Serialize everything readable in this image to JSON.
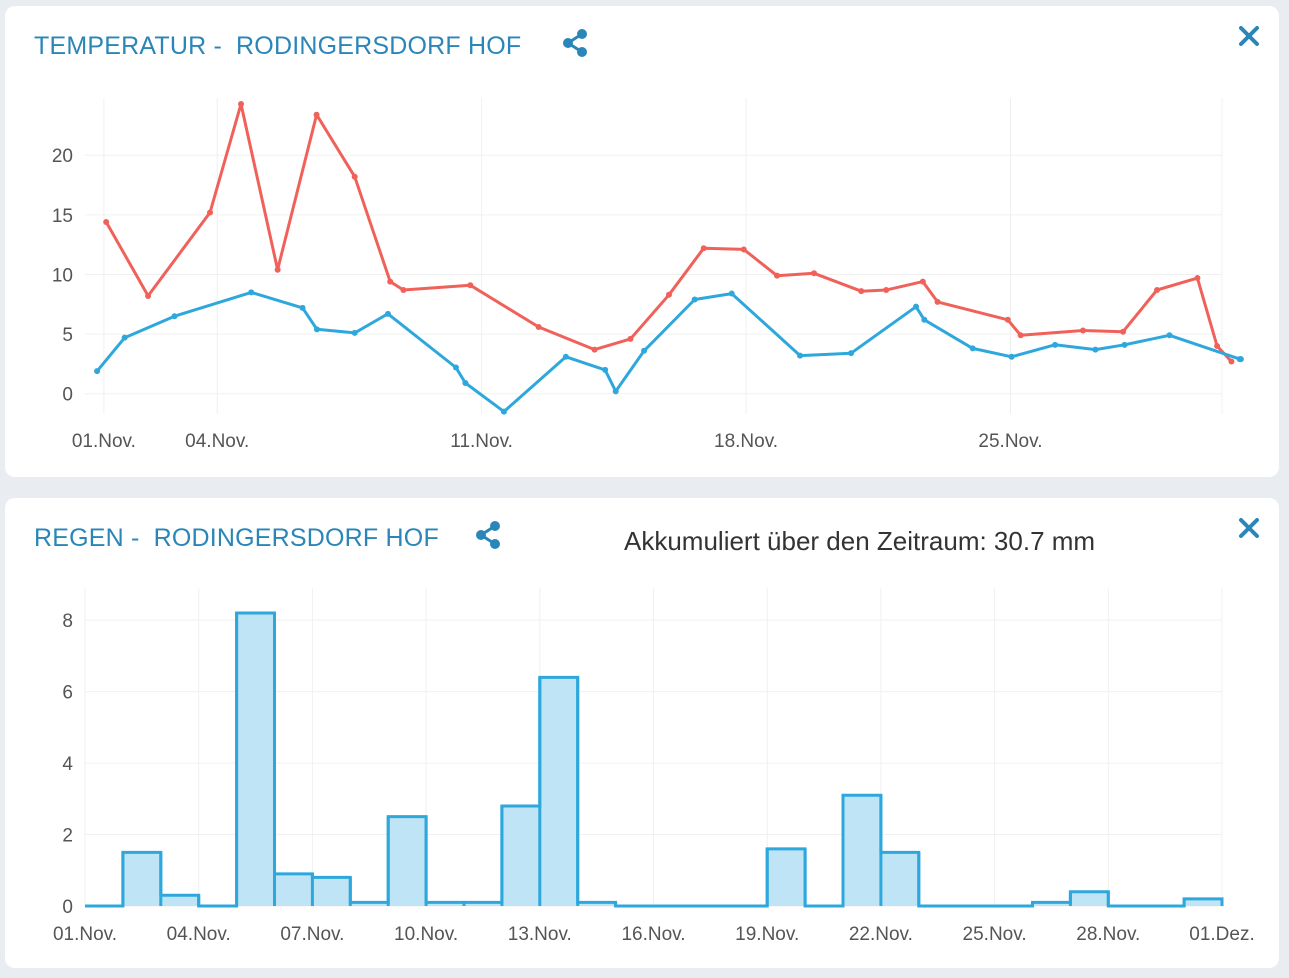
{
  "temperature_panel": {
    "title_prefix": "TEMPERATUR -",
    "station": "RODINGERSDORF HOF",
    "share_icon": "share-icon",
    "close_icon": "close-icon"
  },
  "rain_panel": {
    "title_prefix": "REGEN -",
    "station": "RODINGERSDORF HOF",
    "accumulated_text": "Akkumuliert über den Zeitraum: 30.7 mm",
    "share_icon": "share-icon",
    "close_icon": "close-icon"
  },
  "colors": {
    "accent": "#2a86b9",
    "max_line": "#f0615a",
    "min_line": "#2ea8dc",
    "bar_fill": "#bfe4f5",
    "bar_stroke": "#2ea8dc"
  },
  "chart_data": [
    {
      "type": "line",
      "x_axis": "date (day of month, November)",
      "xlim": [
        0.5,
        30.6
      ],
      "ylim": [
        -1.7,
        24.8
      ],
      "y_ticks": [
        0,
        5,
        10,
        15,
        20
      ],
      "x_ticks": [
        {
          "day": 1,
          "label": "01.Nov."
        },
        {
          "day": 4,
          "label": "04.Nov."
        },
        {
          "day": 11,
          "label": "11.Nov."
        },
        {
          "day": 18,
          "label": "18.Nov."
        },
        {
          "day": 25,
          "label": "25.Nov."
        }
      ],
      "grid": true,
      "legend": "none",
      "series": [
        {
          "key": "max",
          "color": "#f0615a",
          "points": [
            [
              1.06,
              14.4
            ],
            [
              2.17,
              8.2
            ],
            [
              3.81,
              15.2
            ],
            [
              4.63,
              24.3
            ],
            [
              5.6,
              10.4
            ],
            [
              6.63,
              23.4
            ],
            [
              7.64,
              18.2
            ],
            [
              8.58,
              9.4
            ],
            [
              8.93,
              8.7
            ],
            [
              10.7,
              9.1
            ],
            [
              12.51,
              5.6
            ],
            [
              13.99,
              3.7
            ],
            [
              14.94,
              4.6
            ],
            [
              15.96,
              8.3
            ],
            [
              16.88,
              12.2
            ],
            [
              17.94,
              12.1
            ],
            [
              18.82,
              9.9
            ],
            [
              19.8,
              10.1
            ],
            [
              21.05,
              8.6
            ],
            [
              21.71,
              8.7
            ],
            [
              22.68,
              9.4
            ],
            [
              23.07,
              7.7
            ],
            [
              24.93,
              6.2
            ],
            [
              25.27,
              4.9
            ],
            [
              26.92,
              5.3
            ],
            [
              27.98,
              5.2
            ],
            [
              28.88,
              8.7
            ],
            [
              29.95,
              9.7
            ],
            [
              30.47,
              4.0
            ],
            [
              30.85,
              2.7
            ]
          ]
        },
        {
          "key": "min",
          "color": "#2ea8dc",
          "points": [
            [
              0.82,
              1.9
            ],
            [
              1.55,
              4.7
            ],
            [
              2.87,
              6.5
            ],
            [
              4.9,
              8.5
            ],
            [
              6.26,
              7.2
            ],
            [
              6.64,
              5.4
            ],
            [
              7.64,
              5.1
            ],
            [
              8.52,
              6.7
            ],
            [
              10.32,
              2.2
            ],
            [
              10.57,
              0.9
            ],
            [
              11.59,
              -1.5
            ],
            [
              13.23,
              3.1
            ],
            [
              14.27,
              2.0
            ],
            [
              14.55,
              0.2
            ],
            [
              15.3,
              3.6
            ],
            [
              16.64,
              7.9
            ],
            [
              17.62,
              8.4
            ],
            [
              19.43,
              3.2
            ],
            [
              20.78,
              3.4
            ],
            [
              22.5,
              7.3
            ],
            [
              22.72,
              6.2
            ],
            [
              24.0,
              3.8
            ],
            [
              25.03,
              3.1
            ],
            [
              26.18,
              4.1
            ],
            [
              27.25,
              3.7
            ],
            [
              28.02,
              4.1
            ],
            [
              29.21,
              4.9
            ],
            [
              31.07,
              2.9
            ],
            [
              31.1,
              2.9
            ],
            [
              31.09,
              2.9
            ]
          ]
        }
      ]
    },
    {
      "type": "bar",
      "unit": "mm",
      "categories": [
        "01.Nov.",
        "02.Nov.",
        "03.Nov.",
        "04.Nov.",
        "05.Nov.",
        "06.Nov.",
        "07.Nov.",
        "08.Nov.",
        "09.Nov.",
        "10.Nov.",
        "11.Nov.",
        "12.Nov.",
        "13.Nov.",
        "14.Nov.",
        "15.Nov.",
        "16.Nov.",
        "17.Nov.",
        "18.Nov.",
        "19.Nov.",
        "20.Nov.",
        "21.Nov.",
        "22.Nov.",
        "23.Nov.",
        "24.Nov.",
        "25.Nov.",
        "26.Nov.",
        "27.Nov.",
        "28.Nov.",
        "29.Nov.",
        "30.Nov.",
        "01.Dez."
      ],
      "values": [
        0,
        1.5,
        0.3,
        0,
        8.2,
        0.9,
        0.8,
        0.1,
        2.5,
        0.1,
        0.1,
        2.8,
        6.4,
        0.1,
        0,
        0,
        0,
        0,
        1.6,
        0,
        3.1,
        1.5,
        0,
        0,
        0,
        0.1,
        0.4,
        0,
        0,
        0.2,
        0
      ],
      "ylim": [
        0,
        8.9
      ],
      "y_ticks": [
        0,
        2,
        4,
        6,
        8
      ],
      "x_tick_labels": [
        "01.Nov.",
        "04.Nov.",
        "07.Nov.",
        "10.Nov.",
        "13.Nov.",
        "16.Nov.",
        "19.Nov.",
        "22.Nov.",
        "25.Nov.",
        "28.Nov.",
        "01.Dez."
      ],
      "grid": true,
      "legend": "none",
      "total": 30.7
    }
  ]
}
